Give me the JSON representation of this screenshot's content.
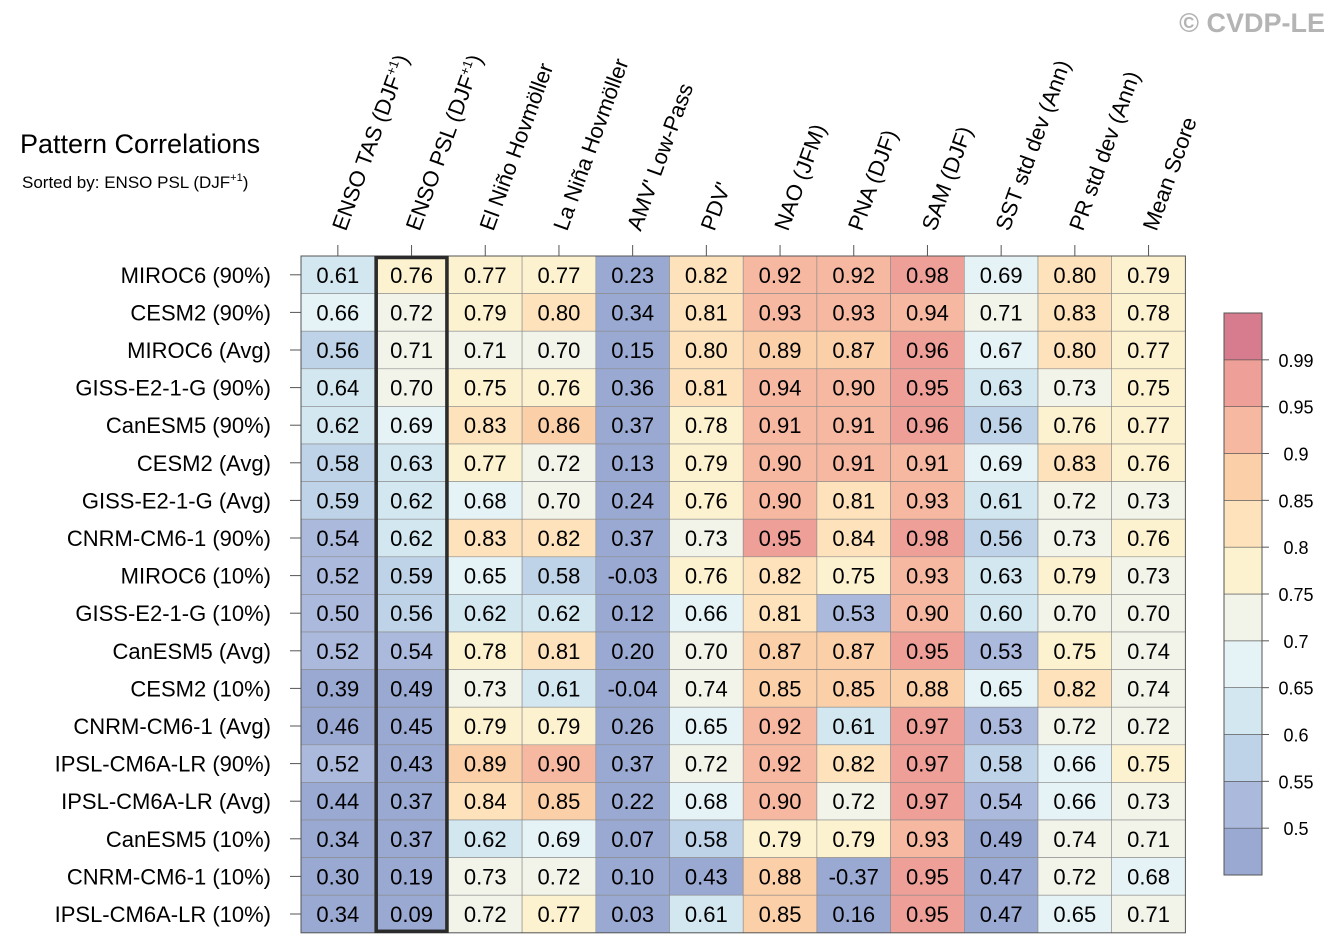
{
  "watermark": "© CVDP-LE",
  "chart_data": {
    "type": "heatmap",
    "title": "Pattern Correlations",
    "subtitle": "Sorted by: ENSO PSL (DJF+1)",
    "sorted_by_column": "ENSO PSL (DJF+1)",
    "columns": [
      "ENSO TAS (DJF+1)",
      "ENSO PSL (DJF+1)",
      "El Niño Hovmöller",
      "La Niña Hovmöller",
      "AMV' Low-Pass",
      "PDV'",
      "NAO (JFM)",
      "PNA (DJF)",
      "SAM (DJF)",
      "SST std dev (Ann)",
      "PR std dev (Ann)",
      "Mean Score"
    ],
    "rows": [
      "MIROC6 (90%)",
      "CESM2 (90%)",
      "MIROC6 (Avg)",
      "GISS-E2-1-G (90%)",
      "CanESM5 (90%)",
      "CESM2 (Avg)",
      "GISS-E2-1-G (Avg)",
      "CNRM-CM6-1 (90%)",
      "MIROC6 (10%)",
      "GISS-E2-1-G (10%)",
      "CanESM5 (Avg)",
      "CESM2 (10%)",
      "CNRM-CM6-1 (Avg)",
      "IPSL-CM6A-LR (90%)",
      "IPSL-CM6A-LR (Avg)",
      "CanESM5 (10%)",
      "CNRM-CM6-1 (10%)",
      "IPSL-CM6A-LR (10%)"
    ],
    "values": [
      [
        0.61,
        0.76,
        0.77,
        0.77,
        0.23,
        0.82,
        0.92,
        0.92,
        0.98,
        0.69,
        0.8,
        0.79
      ],
      [
        0.66,
        0.72,
        0.79,
        0.8,
        0.34,
        0.81,
        0.93,
        0.93,
        0.94,
        0.71,
        0.83,
        0.78
      ],
      [
        0.56,
        0.71,
        0.71,
        0.7,
        0.15,
        0.8,
        0.89,
        0.87,
        0.96,
        0.67,
        0.8,
        0.77
      ],
      [
        0.64,
        0.7,
        0.75,
        0.76,
        0.36,
        0.81,
        0.94,
        0.9,
        0.95,
        0.63,
        0.73,
        0.75
      ],
      [
        0.62,
        0.69,
        0.83,
        0.86,
        0.37,
        0.78,
        0.91,
        0.91,
        0.96,
        0.56,
        0.76,
        0.77
      ],
      [
        0.58,
        0.63,
        0.77,
        0.72,
        0.13,
        0.79,
        0.9,
        0.91,
        0.91,
        0.69,
        0.83,
        0.76
      ],
      [
        0.59,
        0.62,
        0.68,
        0.7,
        0.24,
        0.76,
        0.9,
        0.81,
        0.93,
        0.61,
        0.72,
        0.73
      ],
      [
        0.54,
        0.62,
        0.83,
        0.82,
        0.37,
        0.73,
        0.95,
        0.84,
        0.98,
        0.56,
        0.73,
        0.76
      ],
      [
        0.52,
        0.59,
        0.65,
        0.58,
        -0.03,
        0.76,
        0.82,
        0.75,
        0.93,
        0.63,
        0.79,
        0.73
      ],
      [
        0.5,
        0.56,
        0.62,
        0.62,
        0.12,
        0.66,
        0.81,
        0.53,
        0.9,
        0.6,
        0.7,
        0.7
      ],
      [
        0.52,
        0.54,
        0.78,
        0.81,
        0.2,
        0.7,
        0.87,
        0.87,
        0.95,
        0.53,
        0.75,
        0.74
      ],
      [
        0.39,
        0.49,
        0.73,
        0.61,
        -0.04,
        0.74,
        0.85,
        0.85,
        0.88,
        0.65,
        0.82,
        0.74
      ],
      [
        0.46,
        0.45,
        0.79,
        0.79,
        0.26,
        0.65,
        0.92,
        0.61,
        0.97,
        0.53,
        0.72,
        0.72
      ],
      [
        0.52,
        0.43,
        0.89,
        0.9,
        0.37,
        0.72,
        0.92,
        0.82,
        0.97,
        0.58,
        0.66,
        0.75
      ],
      [
        0.44,
        0.37,
        0.84,
        0.85,
        0.22,
        0.68,
        0.9,
        0.72,
        0.97,
        0.54,
        0.66,
        0.73
      ],
      [
        0.34,
        0.37,
        0.62,
        0.69,
        0.07,
        0.58,
        0.79,
        0.79,
        0.93,
        0.49,
        0.74,
        0.71
      ],
      [
        0.3,
        0.19,
        0.73,
        0.72,
        0.1,
        0.43,
        0.88,
        -0.37,
        0.95,
        0.47,
        0.72,
        0.68
      ],
      [
        0.34,
        0.09,
        0.72,
        0.77,
        0.03,
        0.61,
        0.85,
        0.16,
        0.95,
        0.47,
        0.65,
        0.71
      ]
    ],
    "colorbar": {
      "levels": [
        0.5,
        0.55,
        0.6,
        0.65,
        0.7,
        0.75,
        0.8,
        0.85,
        0.9,
        0.95,
        0.99
      ],
      "labels": [
        "0.5",
        "0.55",
        "0.6",
        "0.65",
        "0.7",
        "0.75",
        "0.8",
        "0.85",
        "0.9",
        "0.95",
        "0.99"
      ],
      "colors": [
        "#9aa9d2",
        "#aab9dc",
        "#bed3e7",
        "#d3e7f0",
        "#e6f3f6",
        "#f2f4ea",
        "#fdf2d0",
        "#fde2bb",
        "#fbcfa8",
        "#f7b8a1",
        "#ee9f97",
        "#d67c8e"
      ],
      "placement": "right"
    }
  }
}
